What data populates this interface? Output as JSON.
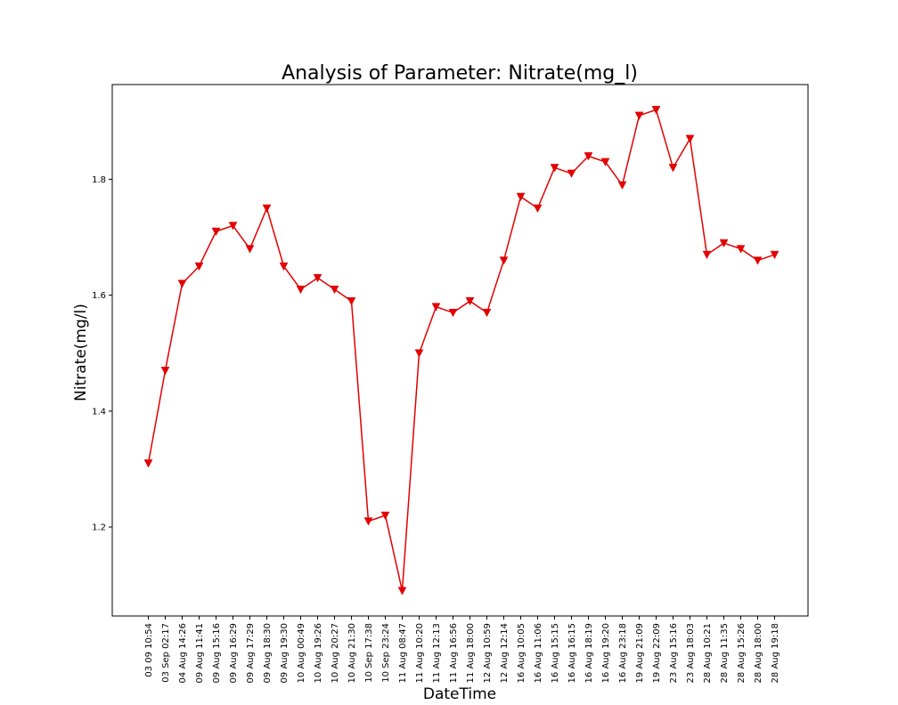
{
  "chart_data": {
    "type": "line",
    "title": "Analysis of Parameter: Nitrate(mg_l)",
    "xlabel": "DateTime",
    "ylabel": "Nitrate(mg/l)",
    "categories": [
      "03 09 10:54",
      "03 Sep 02:17",
      "04 Aug 14:26",
      "09 Aug 11:41",
      "09 Aug 15:16",
      "09 Aug 16:29",
      "09 Aug 17:29",
      "09 Aug 18:30",
      "09 Aug 19:30",
      "10 Aug 00:49",
      "10 Aug 19:26",
      "10 Aug 20:27",
      "10 Aug 21:30",
      "10 Sep 17:38",
      "10 Sep 23:24",
      "11 Aug 08:47",
      "11 Aug 10:20",
      "11 Aug 12:13",
      "11 Aug 16:56",
      "11 Aug 18:00",
      "12 Aug 10:59",
      "12 Aug 12:14",
      "16 Aug 10:05",
      "16 Aug 11:06",
      "16 Aug 15:15",
      "16 Aug 16:15",
      "16 Aug 18:19",
      "16 Aug 19:20",
      "16 Aug 23:18",
      "19 Aug 21:09",
      "19 Aug 22:09",
      "23 Aug 15:16",
      "23 Aug 18:03",
      "28 Aug 10:21",
      "28 Aug 11:35",
      "28 Aug 15:26",
      "28 Aug 18:00",
      "28 Aug 19:18"
    ],
    "series": [
      {
        "values": [
          1.31,
          1.47,
          1.62,
          1.65,
          1.71,
          1.72,
          1.68,
          1.75,
          1.65,
          1.61,
          1.63,
          1.61,
          1.59,
          1.21,
          1.22,
          1.09,
          1.5,
          1.58,
          1.57,
          1.59,
          1.57,
          1.66,
          1.77,
          1.75,
          1.82,
          1.81,
          1.84,
          1.83,
          1.79,
          1.91,
          1.92,
          1.82,
          1.87,
          1.67,
          1.69,
          1.68,
          1.66,
          1.67
        ]
      }
    ],
    "yticks": [
      "1.2",
      "1.4",
      "1.6",
      "1.8"
    ],
    "ylim": [
      1.0465,
      1.9635
    ],
    "marker": "triangle-down",
    "color": "#e30000",
    "grid": false,
    "legend": "none"
  }
}
